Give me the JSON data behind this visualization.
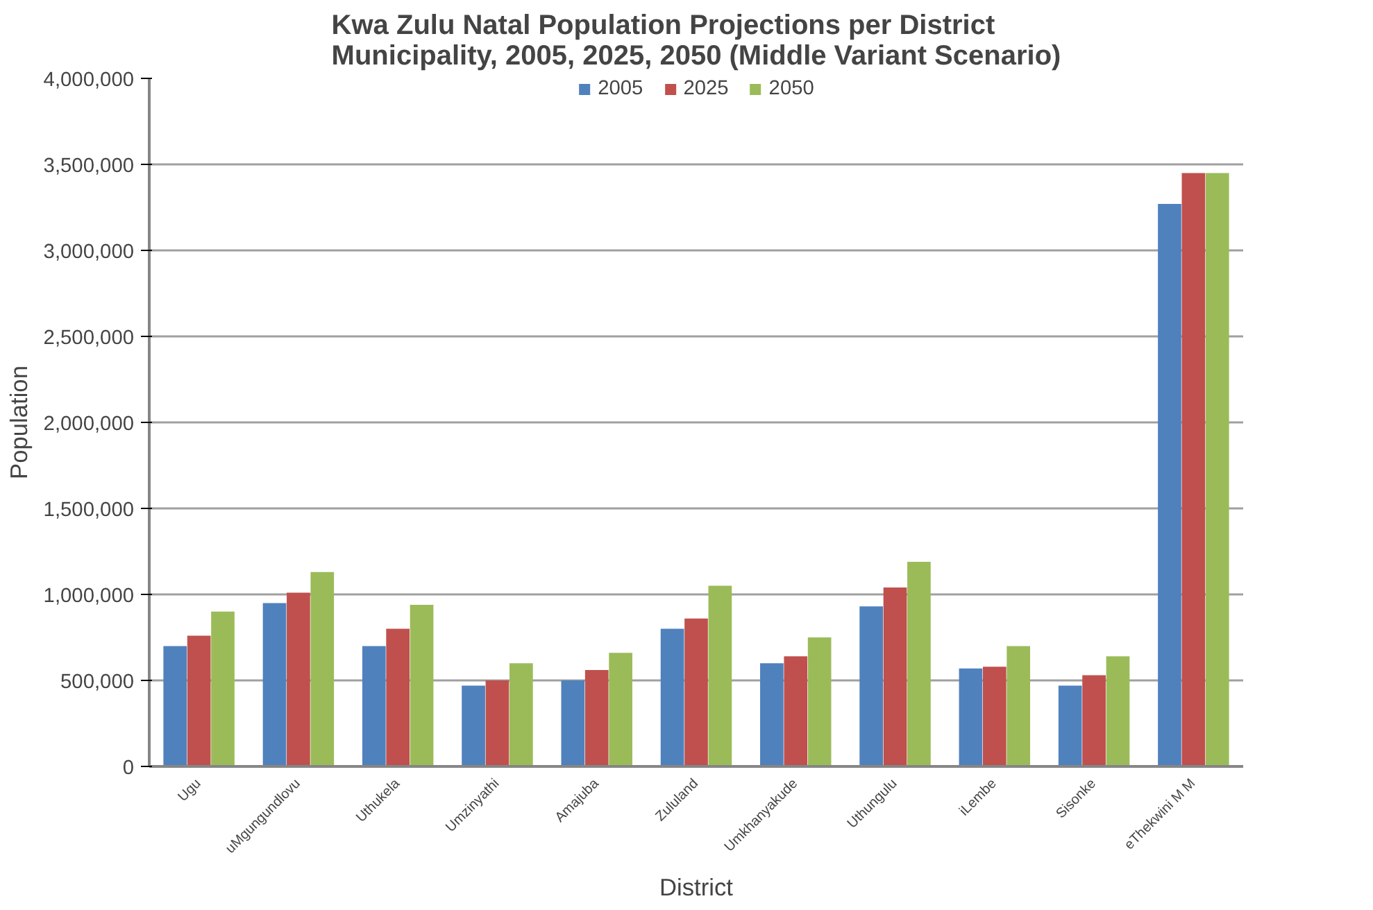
{
  "chart_data": {
    "type": "bar",
    "title": "Kwa Zulu Natal Population Projections per District\nMunicipality, 2005, 2025, 2050 (Middle Variant Scenario)",
    "xlabel": "District",
    "ylabel": "Population",
    "categories": [
      "Ugu",
      "uMgungundlovu",
      "Uthukela",
      "Umzinyathi",
      "Amajuba",
      "Zululand",
      "Umkhanyakude",
      "Uthungulu",
      "iLembe",
      "Sisonke",
      "eThekwini M M"
    ],
    "series": [
      {
        "name": "2005",
        "color": "#4f81bd",
        "values": [
          700000,
          950000,
          700000,
          470000,
          500000,
          800000,
          600000,
          930000,
          570000,
          470000,
          3270000
        ]
      },
      {
        "name": "2025",
        "color": "#c0504d",
        "values": [
          760000,
          1010000,
          800000,
          500000,
          560000,
          860000,
          640000,
          1040000,
          580000,
          530000,
          3450000
        ]
      },
      {
        "name": "2050",
        "color": "#9bbb59",
        "values": [
          900000,
          1130000,
          940000,
          600000,
          660000,
          1050000,
          750000,
          1190000,
          700000,
          640000,
          3450000
        ]
      }
    ],
    "ylim": [
      0,
      4000000
    ],
    "yticks": [
      {
        "value": 0,
        "label": "0"
      },
      {
        "value": 500000,
        "label": "500,000"
      },
      {
        "value": 1000000,
        "label": "1,000,000"
      },
      {
        "value": 1500000,
        "label": "1,500,000"
      },
      {
        "value": 2000000,
        "label": "2,000,000"
      },
      {
        "value": 2500000,
        "label": "2,500,000"
      },
      {
        "value": 3000000,
        "label": "3,000,000"
      },
      {
        "value": 3500000,
        "label": "3,500,000"
      },
      {
        "value": 4000000,
        "label": "4,000,000"
      }
    ],
    "grid": "y",
    "legend": "top"
  }
}
